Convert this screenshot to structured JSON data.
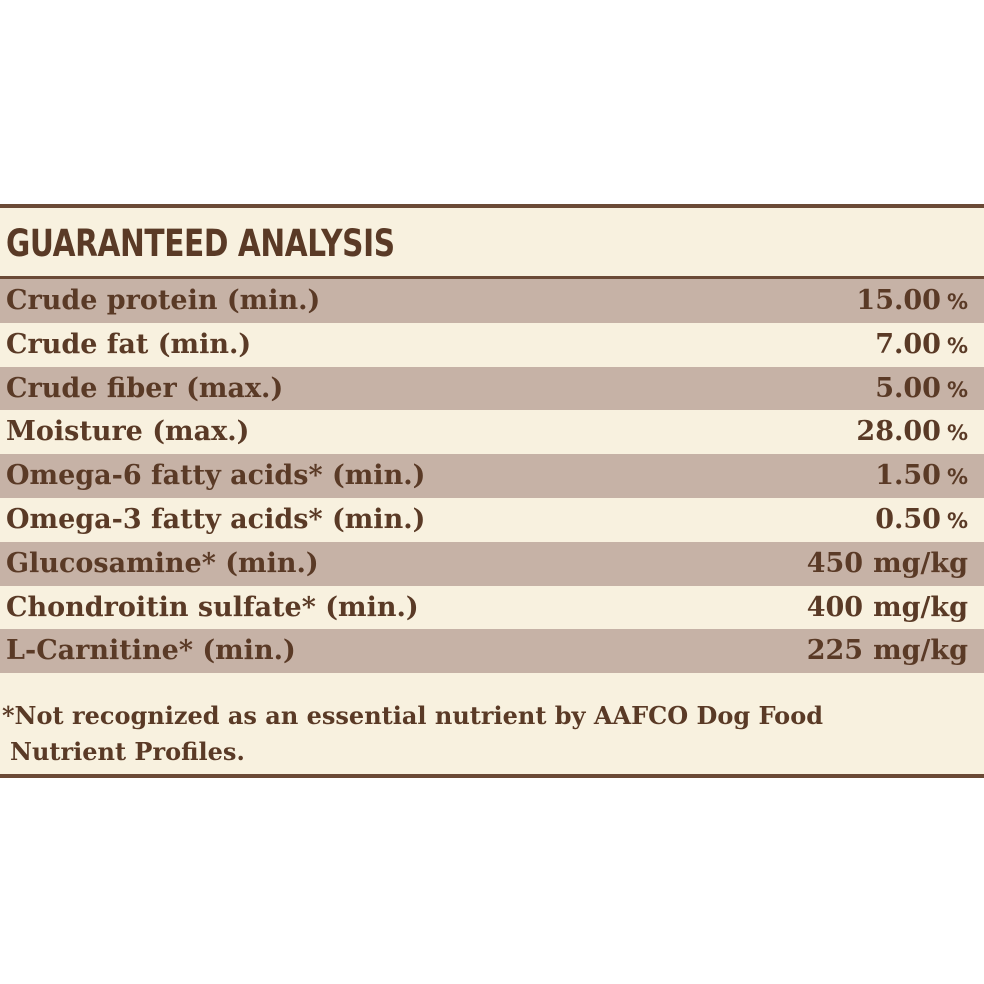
{
  "panel": {
    "title": "GUARANTEED ANALYSIS",
    "rows": [
      {
        "label": "Crude protein (min.)",
        "value": "15.00",
        "unit": "%"
      },
      {
        "label": "Crude fat (min.)",
        "value": "7.00",
        "unit": "%"
      },
      {
        "label": "Crude fiber (max.)",
        "value": "5.00",
        "unit": "%"
      },
      {
        "label": "Moisture (max.)",
        "value": "28.00",
        "unit": "%"
      },
      {
        "label": "Omega-6 fatty acids* (min.)",
        "value": "1.50",
        "unit": "%"
      },
      {
        "label": "Omega-3 fatty acids* (min.)",
        "value": "0.50",
        "unit": "%"
      },
      {
        "label": "Glucosamine* (min.)",
        "value": "450",
        "unit": "mg/kg"
      },
      {
        "label": "Chondroitin sulfate* (min.)",
        "value": "400",
        "unit": "mg/kg"
      },
      {
        "label": "L-Carnitine* (min.)",
        "value": "225",
        "unit": "mg/kg"
      }
    ],
    "footnote_line1": "*Not recognized as an essential nutrient by AAFCO Dog Food",
    "footnote_line2": "Nutrient Profiles."
  },
  "colors": {
    "text": "#5a3a26",
    "shaded_row": "#c6b2a6",
    "background": "#f8f1df",
    "border": "#6b4a36"
  }
}
